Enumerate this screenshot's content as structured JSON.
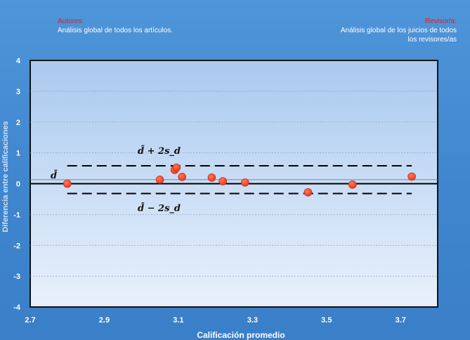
{
  "header": {
    "authors_label": "Autores:",
    "authors_text": "Análisis global de todos los  artículos.",
    "reviewer_label": "Revisor/a:",
    "reviewer_text_1": "Análisis global de los juicios de todos",
    "reviewer_text_2": "los revisores/as"
  },
  "chart_data": {
    "type": "scatter",
    "title": "",
    "xlabel": "Calificación promedio",
    "ylabel": "Diferencia entre calificaciones",
    "xlim": [
      2.7,
      3.8
    ],
    "ylim": [
      -4,
      4
    ],
    "x_ticks": [
      "2.7",
      "2.9",
      "3.1",
      "3.3",
      "3.5",
      "3.7"
    ],
    "y_ticks": [
      "-4",
      "-3",
      "-2",
      "-1",
      "0",
      "1",
      "2",
      "3",
      "4"
    ],
    "grid": true,
    "points": [
      {
        "x": 2.8,
        "y": 0.0
      },
      {
        "x": 3.05,
        "y": 0.13
      },
      {
        "x": 3.09,
        "y": 0.45
      },
      {
        "x": 3.095,
        "y": 0.52
      },
      {
        "x": 3.11,
        "y": 0.22
      },
      {
        "x": 3.19,
        "y": 0.2
      },
      {
        "x": 3.22,
        "y": 0.08
      },
      {
        "x": 3.28,
        "y": 0.04
      },
      {
        "x": 3.45,
        "y": -0.28
      },
      {
        "x": 3.57,
        "y": -0.03
      },
      {
        "x": 3.73,
        "y": 0.23
      }
    ],
    "mean_line": {
      "y": 0.13,
      "label": "d̄"
    },
    "upper_limit": {
      "y": 0.58,
      "label": "d̄ + 2s_d",
      "x_start": 2.8,
      "x_end": 3.73
    },
    "lower_limit": {
      "y": -0.32,
      "label": "d̄ − 2s_d",
      "x_start": 2.8,
      "x_end": 3.73
    },
    "colors": {
      "point": "#e8321e",
      "plot_top": "#a9c9ef",
      "plot_bottom": "#e9f1fb",
      "lines": "#000000"
    }
  }
}
